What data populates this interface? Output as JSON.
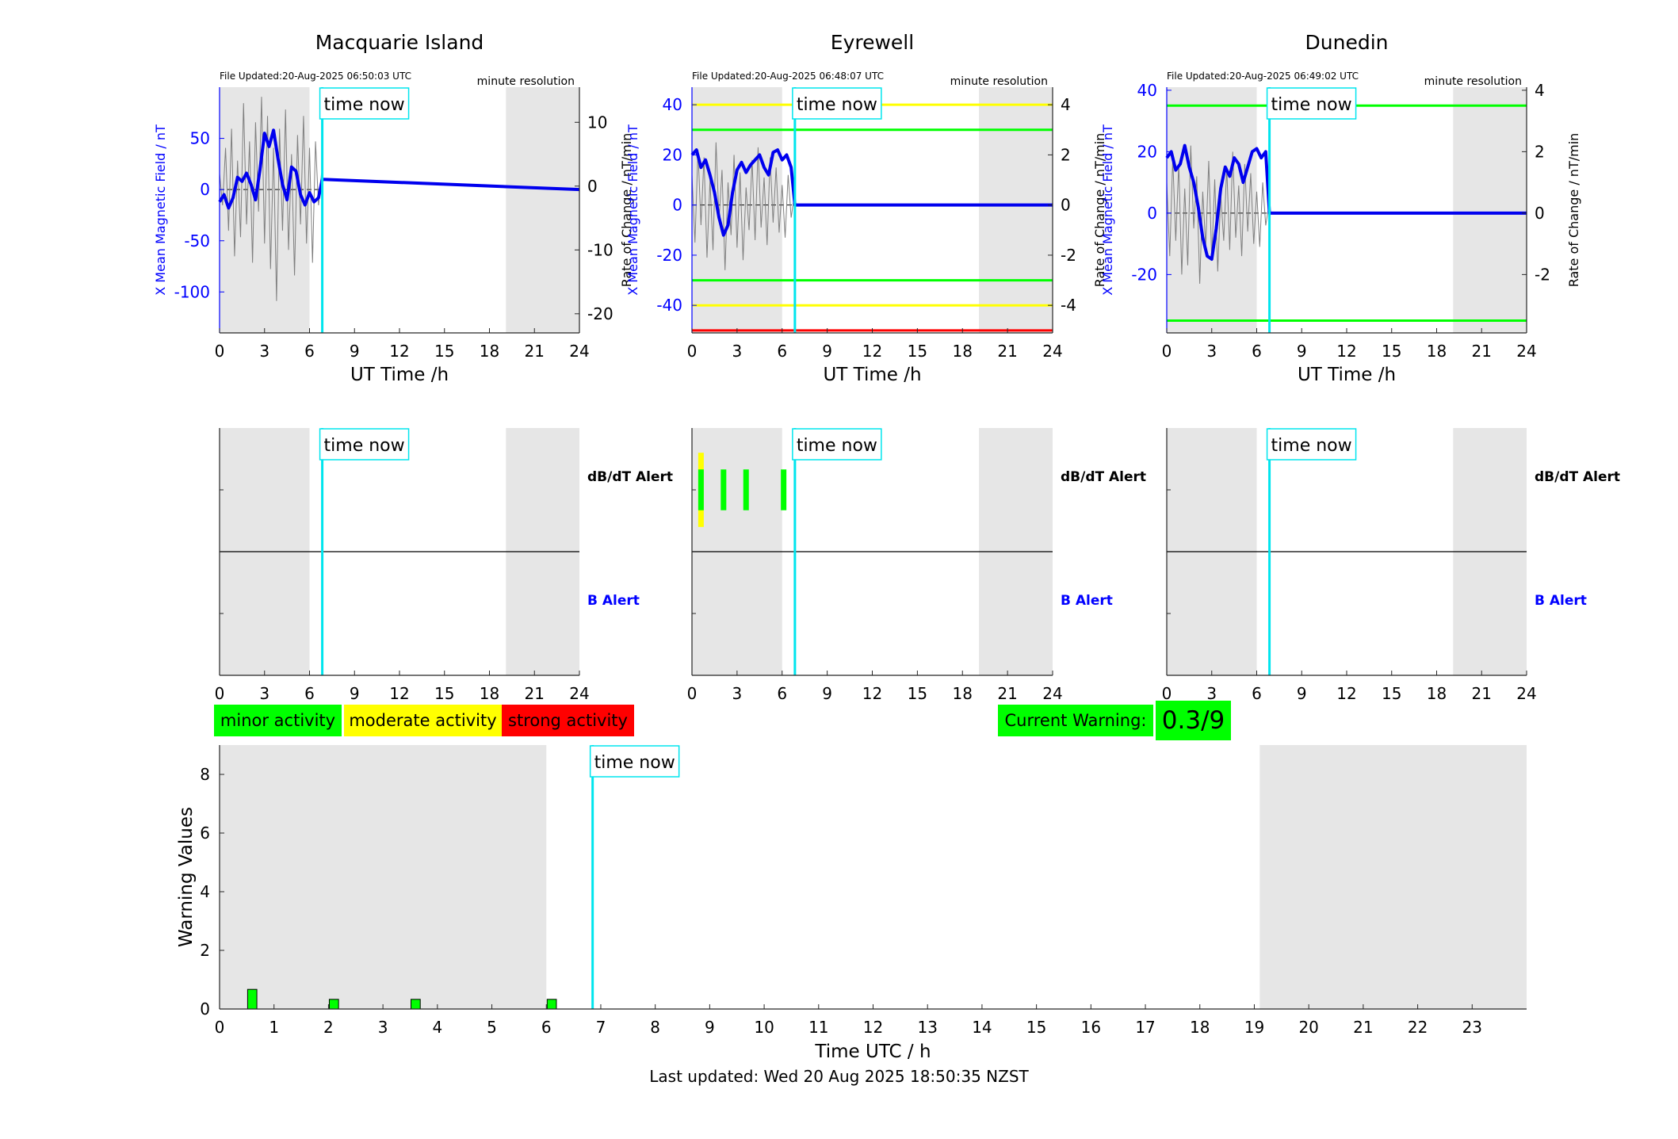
{
  "colors": {
    "shade": "#e6e6e6",
    "now_line": "#00e5ee",
    "raw_trace": "#7f7f7f",
    "mean_trace": "#0000ee",
    "axis_blue": "#0000ff",
    "minor": "#00ff00",
    "moderate": "#ffff00",
    "strong": "#ff0000",
    "axis": "#262626"
  },
  "common": {
    "time_now_label": "time now",
    "ut_xlabel": "UT Time /h",
    "right_ylabel": "Rate of Change / nT/min",
    "left_ylabel": "X Mean Magnetic Field / nT",
    "resolution": "minute resolution",
    "dbdt_alert": "dB/dT Alert",
    "b_alert": "B Alert",
    "time_now_hours": 6.85,
    "night_shade_hours": [
      [
        0,
        6
      ],
      [
        19.1,
        24
      ]
    ]
  },
  "legend": {
    "minor": "minor activity",
    "moderate": "moderate activity",
    "strong": "strong activity"
  },
  "current_warning": {
    "label": "Current Warning:",
    "value": "0.3/9"
  },
  "footer": "Last updated: Wed 20 Aug 2025 18:50:35 NZST",
  "chart_data": [
    {
      "type": "line",
      "title": "Macquarie Island",
      "file_updated": "File Updated:20-Aug-2025 06:50:03 UTC",
      "xlim": [
        0,
        24
      ],
      "xticks": [
        0,
        3,
        6,
        9,
        12,
        15,
        18,
        21,
        24
      ],
      "ylim_left": [
        -140,
        100
      ],
      "yticks_left": [
        -100,
        -50,
        0,
        50
      ],
      "ylim_right": [
        -23,
        15.5
      ],
      "yticks_right": [
        -20,
        -10,
        0,
        10
      ],
      "thresholds": [],
      "series": [
        {
          "kind": "raw_rate_of_change",
          "x": [
            0,
            0.2,
            0.4,
            0.6,
            0.8,
            1.0,
            1.2,
            1.4,
            1.6,
            1.8,
            2.0,
            2.2,
            2.4,
            2.6,
            2.8,
            3.0,
            3.2,
            3.4,
            3.6,
            3.8,
            4.0,
            4.2,
            4.4,
            4.6,
            4.8,
            5.0,
            5.2,
            5.4,
            5.6,
            5.8,
            6.0,
            6.2,
            6.4,
            6.6,
            6.8
          ],
          "y": [
            2,
            -3,
            6,
            -7,
            9,
            -11,
            4,
            -8,
            13,
            -6,
            7,
            -12,
            10,
            -4,
            14,
            -9,
            11,
            -13,
            6,
            -18,
            9,
            -7,
            12,
            -10,
            5,
            -14,
            8,
            -6,
            11,
            -9,
            6,
            -12,
            7,
            -3,
            2
          ]
        },
        {
          "kind": "x_mean_field",
          "x": [
            0,
            0.3,
            0.6,
            0.9,
            1.2,
            1.5,
            1.8,
            2.1,
            2.4,
            2.7,
            3.0,
            3.3,
            3.6,
            3.9,
            4.2,
            4.5,
            4.8,
            5.1,
            5.4,
            5.7,
            6.0,
            6.3,
            6.6,
            6.85,
            24
          ],
          "y": [
            -12,
            -5,
            -18,
            -8,
            12,
            8,
            16,
            5,
            -10,
            20,
            55,
            42,
            58,
            30,
            5,
            -10,
            22,
            18,
            -5,
            -15,
            -3,
            -12,
            -8,
            10,
            0
          ]
        }
      ],
      "alert_bars": []
    },
    {
      "type": "line",
      "title": "Eyrewell",
      "file_updated": "File Updated:20-Aug-2025 06:48:07 UTC",
      "xlim": [
        0,
        24
      ],
      "xticks": [
        0,
        3,
        6,
        9,
        12,
        15,
        18,
        21,
        24
      ],
      "ylim_left": [
        -51,
        47
      ],
      "yticks_left": [
        -40,
        -20,
        0,
        20,
        40
      ],
      "ylim_right": [
        -5.1,
        4.7
      ],
      "yticks_right": [
        -4,
        -2,
        0,
        2,
        4
      ],
      "thresholds": [
        {
          "y": 40,
          "level": "moderate"
        },
        {
          "y": 30,
          "level": "minor"
        },
        {
          "y": -30,
          "level": "minor"
        },
        {
          "y": -40,
          "level": "moderate"
        },
        {
          "y": -50,
          "level": "strong"
        }
      ],
      "series": [
        {
          "kind": "raw_rate_of_change",
          "x": [
            0,
            0.2,
            0.4,
            0.6,
            0.8,
            1.0,
            1.2,
            1.4,
            1.6,
            1.8,
            2.0,
            2.2,
            2.4,
            2.6,
            2.8,
            3.0,
            3.2,
            3.4,
            3.6,
            3.8,
            4.0,
            4.2,
            4.4,
            4.6,
            4.8,
            5.0,
            5.2,
            5.4,
            5.6,
            5.8,
            6.0,
            6.2,
            6.4,
            6.6,
            6.8
          ],
          "y": [
            1.2,
            -1.5,
            2.2,
            -0.8,
            1.9,
            -2.1,
            1.0,
            -1.8,
            2.5,
            -0.6,
            1.4,
            -2.6,
            0.9,
            -1.2,
            2.0,
            -1.7,
            1.3,
            -2.2,
            0.7,
            -1.0,
            1.8,
            -1.4,
            2.3,
            -0.9,
            1.1,
            -1.6,
            1.9,
            -0.7,
            1.5,
            -1.1,
            0.8,
            -1.3,
            1.2,
            -0.5,
            0.3
          ]
        },
        {
          "kind": "x_mean_field",
          "x": [
            0,
            0.3,
            0.6,
            0.9,
            1.2,
            1.5,
            1.8,
            2.1,
            2.4,
            2.7,
            3.0,
            3.3,
            3.6,
            3.9,
            4.2,
            4.5,
            4.8,
            5.1,
            5.4,
            5.7,
            6.0,
            6.3,
            6.6,
            6.85,
            24
          ],
          "y": [
            20,
            22,
            15,
            18,
            12,
            5,
            -5,
            -12,
            -8,
            5,
            14,
            17,
            13,
            16,
            18,
            20,
            15,
            12,
            21,
            22,
            18,
            20,
            15,
            0,
            0
          ]
        }
      ],
      "alert_bars": [
        {
          "x": 0.6,
          "level": "moderate",
          "extent": 1.0
        },
        {
          "x": 0.6,
          "level": "minor",
          "extent": 0.55
        },
        {
          "x": 2.1,
          "level": "minor",
          "extent": 0.55
        },
        {
          "x": 3.6,
          "level": "minor",
          "extent": 0.55
        },
        {
          "x": 6.1,
          "level": "minor",
          "extent": 0.55
        }
      ]
    },
    {
      "type": "line",
      "title": "Dunedin",
      "file_updated": "File Updated:20-Aug-2025 06:49:02 UTC",
      "xlim": [
        0,
        24
      ],
      "xticks": [
        0,
        3,
        6,
        9,
        12,
        15,
        18,
        21,
        24
      ],
      "ylim_left": [
        -39,
        41
      ],
      "yticks_left": [
        -20,
        0,
        20,
        40
      ],
      "ylim_right": [
        -3.9,
        4.1
      ],
      "yticks_right": [
        -2,
        0,
        2,
        4
      ],
      "thresholds": [
        {
          "y": 35,
          "level": "minor"
        },
        {
          "y": -35,
          "level": "minor"
        }
      ],
      "series": [
        {
          "kind": "raw_rate_of_change",
          "x": [
            0,
            0.2,
            0.4,
            0.6,
            0.8,
            1.0,
            1.2,
            1.4,
            1.6,
            1.8,
            2.0,
            2.2,
            2.4,
            2.6,
            2.8,
            3.0,
            3.2,
            3.4,
            3.6,
            3.8,
            4.0,
            4.2,
            4.4,
            4.6,
            4.8,
            5.0,
            5.2,
            5.4,
            5.6,
            5.8,
            6.0,
            6.2,
            6.4,
            6.6,
            6.8
          ],
          "y": [
            1.0,
            -1.4,
            1.8,
            -0.9,
            1.6,
            -2.0,
            0.8,
            -1.7,
            2.2,
            -0.5,
            1.2,
            -2.3,
            0.7,
            -1.1,
            1.7,
            -1.5,
            1.1,
            -1.9,
            0.6,
            -0.9,
            1.5,
            -1.2,
            2.0,
            -0.8,
            0.9,
            -1.4,
            1.6,
            -0.6,
            1.3,
            -1.0,
            0.7,
            -1.1,
            1.0,
            -0.4,
            0.2
          ]
        },
        {
          "kind": "x_mean_field",
          "x": [
            0,
            0.3,
            0.6,
            0.9,
            1.2,
            1.5,
            1.8,
            2.1,
            2.4,
            2.7,
            3.0,
            3.3,
            3.6,
            3.9,
            4.2,
            4.5,
            4.8,
            5.1,
            5.4,
            5.7,
            6.0,
            6.3,
            6.6,
            6.85,
            24
          ],
          "y": [
            18,
            20,
            14,
            16,
            22,
            15,
            10,
            2,
            -8,
            -14,
            -15,
            -5,
            8,
            15,
            12,
            18,
            16,
            10,
            15,
            20,
            21,
            18,
            20,
            0,
            0
          ]
        }
      ],
      "alert_bars": []
    },
    {
      "type": "bar",
      "title": "",
      "xlabel": "Time UTC / h",
      "ylabel": "Warning Values",
      "xlim": [
        0,
        24
      ],
      "xticks": [
        0,
        1,
        2,
        3,
        4,
        5,
        6,
        7,
        8,
        9,
        10,
        11,
        12,
        13,
        14,
        15,
        16,
        17,
        18,
        19,
        20,
        21,
        22,
        23
      ],
      "ylim": [
        0,
        9
      ],
      "yticks": [
        0,
        2,
        4,
        6,
        8
      ],
      "bar_width_hours": 0.17,
      "x": [
        0.6,
        2.1,
        3.6,
        6.1
      ],
      "values": [
        0.67,
        0.33,
        0.33,
        0.33
      ]
    }
  ]
}
